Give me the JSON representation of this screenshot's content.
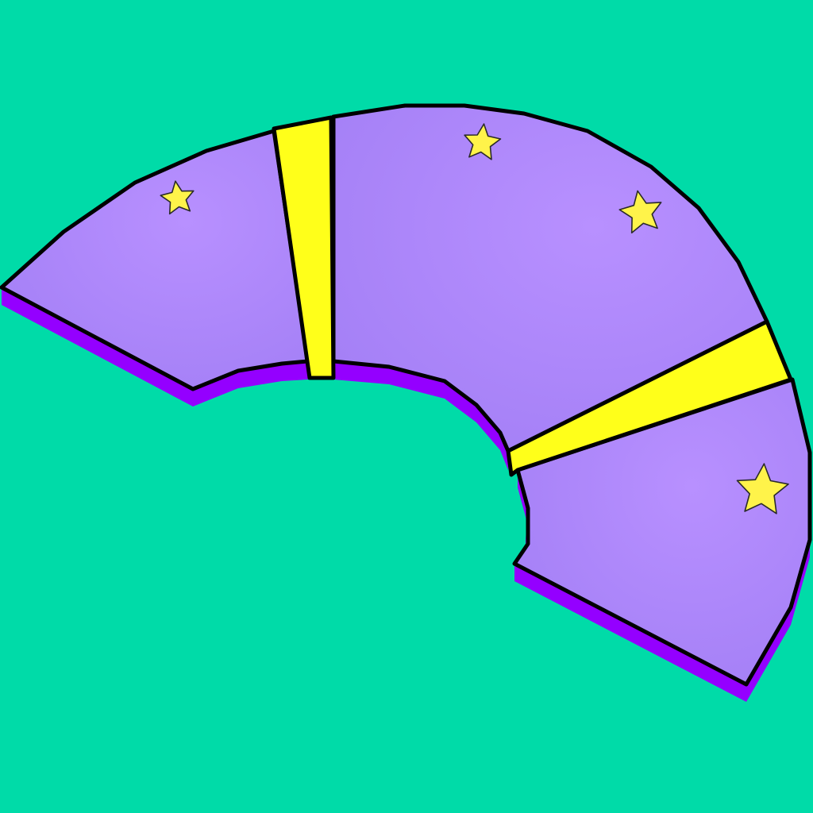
{
  "scene": {
    "background_color": "#00DBA8",
    "track_top_color": "#B08CFF",
    "track_side_color": "#9400FF",
    "divider_color": "#FFFF1A",
    "star_color": "#FFF34A",
    "outline_color": "#000000"
  },
  "track": {
    "segments": [
      "segment-left",
      "segment-middle",
      "segment-right"
    ],
    "dividers": [
      "divider-top",
      "divider-right"
    ],
    "star_count": 4
  }
}
